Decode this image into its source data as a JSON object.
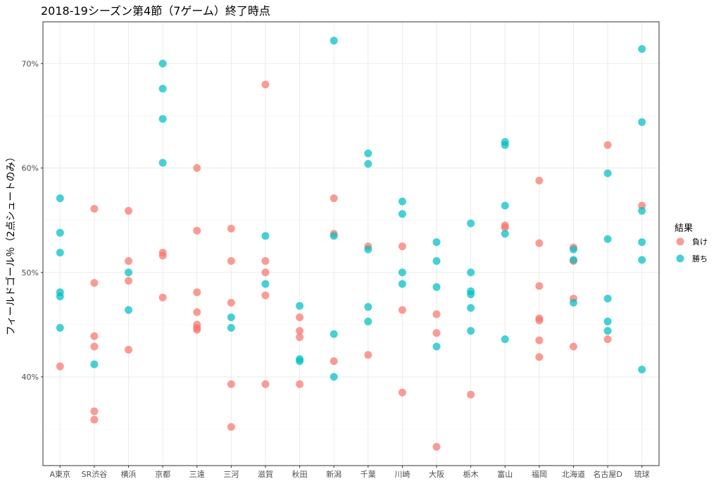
{
  "chart_data": {
    "type": "scatter",
    "title": "2018-19シーズン第4節（7ゲーム）終了時点",
    "xlabel": "",
    "ylabel": "フィールドゴール％（2点シュートのみ）",
    "categories": [
      "A東京",
      "SR渋谷",
      "横浜",
      "京都",
      "三遠",
      "三河",
      "滋賀",
      "秋田",
      "新潟",
      "千葉",
      "川崎",
      "大阪",
      "栃木",
      "富山",
      "福岡",
      "北海道",
      "名古屋D",
      "琉球"
    ],
    "ylim": [
      31.5,
      74
    ],
    "yticks": [
      40,
      50,
      60,
      70
    ],
    "ytick_labels": [
      "40%",
      "50%",
      "60%",
      "70%"
    ],
    "grid": true,
    "legend": {
      "title": "結果",
      "position": "right"
    },
    "series": [
      {
        "name": "負け",
        "color": "#F8766D",
        "points": [
          {
            "x": "A東京",
            "y": 41.0
          },
          {
            "x": "SR渋谷",
            "y": 56.1
          },
          {
            "x": "SR渋谷",
            "y": 49.0
          },
          {
            "x": "SR渋谷",
            "y": 43.9
          },
          {
            "x": "SR渋谷",
            "y": 42.9
          },
          {
            "x": "SR渋谷",
            "y": 36.7
          },
          {
            "x": "SR渋谷",
            "y": 35.9
          },
          {
            "x": "横浜",
            "y": 55.9
          },
          {
            "x": "横浜",
            "y": 51.1
          },
          {
            "x": "横浜",
            "y": 49.2
          },
          {
            "x": "横浜",
            "y": 42.6
          },
          {
            "x": "京都",
            "y": 51.9
          },
          {
            "x": "京都",
            "y": 51.6
          },
          {
            "x": "京都",
            "y": 47.6
          },
          {
            "x": "三遠",
            "y": 60.0
          },
          {
            "x": "三遠",
            "y": 54.0
          },
          {
            "x": "三遠",
            "y": 48.1
          },
          {
            "x": "三遠",
            "y": 46.2
          },
          {
            "x": "三遠",
            "y": 45.0
          },
          {
            "x": "三遠",
            "y": 44.7
          },
          {
            "x": "三遠",
            "y": 44.5
          },
          {
            "x": "三河",
            "y": 54.2
          },
          {
            "x": "三河",
            "y": 51.1
          },
          {
            "x": "三河",
            "y": 47.1
          },
          {
            "x": "三河",
            "y": 39.3
          },
          {
            "x": "三河",
            "y": 35.2
          },
          {
            "x": "滋賀",
            "y": 68.0
          },
          {
            "x": "滋賀",
            "y": 51.1
          },
          {
            "x": "滋賀",
            "y": 50.0
          },
          {
            "x": "滋賀",
            "y": 47.8
          },
          {
            "x": "滋賀",
            "y": 39.3
          },
          {
            "x": "秋田",
            "y": 45.7
          },
          {
            "x": "秋田",
            "y": 44.4
          },
          {
            "x": "秋田",
            "y": 43.8
          },
          {
            "x": "秋田",
            "y": 39.3
          },
          {
            "x": "新潟",
            "y": 57.1
          },
          {
            "x": "新潟",
            "y": 53.7
          },
          {
            "x": "新潟",
            "y": 41.5
          },
          {
            "x": "千葉",
            "y": 52.5
          },
          {
            "x": "千葉",
            "y": 42.1
          },
          {
            "x": "川崎",
            "y": 52.5
          },
          {
            "x": "川崎",
            "y": 46.4
          },
          {
            "x": "川崎",
            "y": 38.5
          },
          {
            "x": "大阪",
            "y": 46.0
          },
          {
            "x": "大阪",
            "y": 44.2
          },
          {
            "x": "大阪",
            "y": 33.3
          },
          {
            "x": "栃木",
            "y": 38.3
          },
          {
            "x": "富山",
            "y": 54.5
          },
          {
            "x": "富山",
            "y": 54.3
          },
          {
            "x": "福岡",
            "y": 58.8
          },
          {
            "x": "福岡",
            "y": 52.8
          },
          {
            "x": "福岡",
            "y": 48.7
          },
          {
            "x": "福岡",
            "y": 45.6
          },
          {
            "x": "福岡",
            "y": 45.4
          },
          {
            "x": "福岡",
            "y": 43.5
          },
          {
            "x": "福岡",
            "y": 41.9
          },
          {
            "x": "北海道",
            "y": 52.4
          },
          {
            "x": "北海道",
            "y": 51.1
          },
          {
            "x": "北海道",
            "y": 47.5
          },
          {
            "x": "北海道",
            "y": 42.9
          },
          {
            "x": "名古屋D",
            "y": 62.2
          },
          {
            "x": "名古屋D",
            "y": 43.6
          },
          {
            "x": "琉球",
            "y": 56.4
          }
        ]
      },
      {
        "name": "勝ち",
        "color": "#00BFC4",
        "points": [
          {
            "x": "A東京",
            "y": 57.1
          },
          {
            "x": "A東京",
            "y": 53.8
          },
          {
            "x": "A東京",
            "y": 51.9
          },
          {
            "x": "A東京",
            "y": 48.1
          },
          {
            "x": "A東京",
            "y": 47.7
          },
          {
            "x": "A東京",
            "y": 44.7
          },
          {
            "x": "SR渋谷",
            "y": 41.2
          },
          {
            "x": "横浜",
            "y": 50.0
          },
          {
            "x": "横浜",
            "y": 46.4
          },
          {
            "x": "京都",
            "y": 70.0
          },
          {
            "x": "京都",
            "y": 67.6
          },
          {
            "x": "京都",
            "y": 64.7
          },
          {
            "x": "京都",
            "y": 60.5
          },
          {
            "x": "三河",
            "y": 45.7
          },
          {
            "x": "三河",
            "y": 44.7
          },
          {
            "x": "滋賀",
            "y": 53.5
          },
          {
            "x": "滋賀",
            "y": 48.9
          },
          {
            "x": "秋田",
            "y": 46.8
          },
          {
            "x": "秋田",
            "y": 41.7
          },
          {
            "x": "秋田",
            "y": 41.5
          },
          {
            "x": "新潟",
            "y": 72.2
          },
          {
            "x": "新潟",
            "y": 53.5
          },
          {
            "x": "新潟",
            "y": 44.1
          },
          {
            "x": "新潟",
            "y": 40.0
          },
          {
            "x": "千葉",
            "y": 61.4
          },
          {
            "x": "千葉",
            "y": 60.4
          },
          {
            "x": "千葉",
            "y": 52.2
          },
          {
            "x": "千葉",
            "y": 46.7
          },
          {
            "x": "千葉",
            "y": 45.3
          },
          {
            "x": "川崎",
            "y": 56.8
          },
          {
            "x": "川崎",
            "y": 55.6
          },
          {
            "x": "川崎",
            "y": 50.0
          },
          {
            "x": "川崎",
            "y": 48.9
          },
          {
            "x": "大阪",
            "y": 52.9
          },
          {
            "x": "大阪",
            "y": 51.1
          },
          {
            "x": "大阪",
            "y": 48.6
          },
          {
            "x": "大阪",
            "y": 42.9
          },
          {
            "x": "栃木",
            "y": 54.7
          },
          {
            "x": "栃木",
            "y": 50.0
          },
          {
            "x": "栃木",
            "y": 48.2
          },
          {
            "x": "栃木",
            "y": 47.9
          },
          {
            "x": "栃木",
            "y": 46.6
          },
          {
            "x": "栃木",
            "y": 44.4
          },
          {
            "x": "富山",
            "y": 62.5
          },
          {
            "x": "富山",
            "y": 62.2
          },
          {
            "x": "富山",
            "y": 56.4
          },
          {
            "x": "富山",
            "y": 53.7
          },
          {
            "x": "富山",
            "y": 43.6
          },
          {
            "x": "北海道",
            "y": 52.2
          },
          {
            "x": "北海道",
            "y": 51.2
          },
          {
            "x": "北海道",
            "y": 47.1
          },
          {
            "x": "名古屋D",
            "y": 59.5
          },
          {
            "x": "名古屋D",
            "y": 53.2
          },
          {
            "x": "名古屋D",
            "y": 47.5
          },
          {
            "x": "名古屋D",
            "y": 45.3
          },
          {
            "x": "名古屋D",
            "y": 44.4
          },
          {
            "x": "琉球",
            "y": 71.4
          },
          {
            "x": "琉球",
            "y": 64.4
          },
          {
            "x": "琉球",
            "y": 55.9
          },
          {
            "x": "琉球",
            "y": 52.9
          },
          {
            "x": "琉球",
            "y": 51.2
          },
          {
            "x": "琉球",
            "y": 40.7
          }
        ]
      }
    ]
  }
}
